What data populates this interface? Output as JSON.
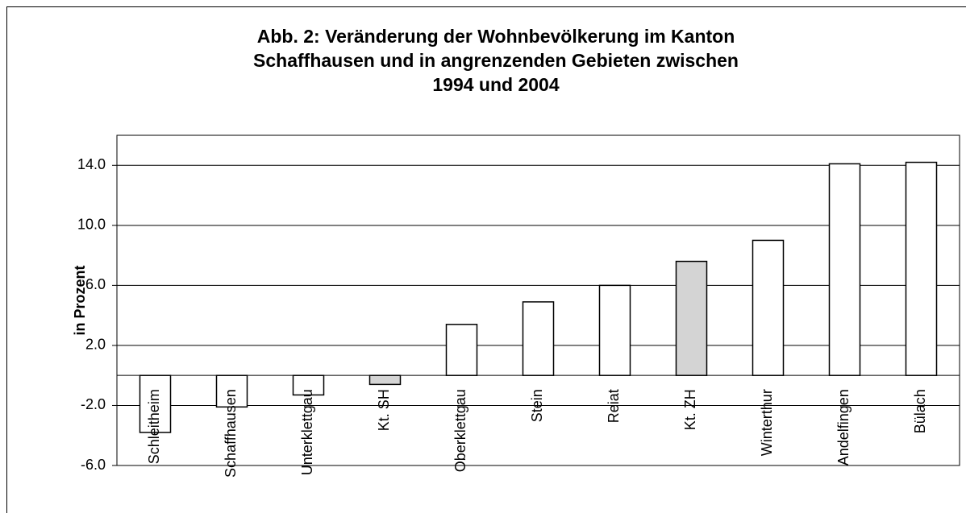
{
  "chart_data": {
    "type": "bar",
    "title": [
      "Abb. 2: Veränderung der Wohnbevölkerung im Kanton",
      "Schaffhausen und in angrenzenden Gebieten zwischen",
      "1994 und 2004"
    ],
    "y_label": "in Prozent",
    "categories": [
      "Schleitheim",
      "Schaffhausen",
      "Unterklettgau",
      "Kt. SH",
      "Oberklettgau",
      "Stein",
      "Reiat",
      "Kt. ZH",
      "Winterthur",
      "Andelfingen",
      "Bülach"
    ],
    "values": [
      -3.8,
      -2.1,
      -1.3,
      -0.6,
      3.4,
      4.9,
      6.0,
      7.6,
      9.0,
      14.1,
      14.2
    ],
    "colors": [
      "#ffffff",
      "#ffffff",
      "#ffffff",
      "#d4d4d4",
      "#ffffff",
      "#ffffff",
      "#ffffff",
      "#d4d4d4",
      "#ffffff",
      "#ffffff",
      "#ffffff"
    ],
    "ylim": [
      -6,
      16
    ],
    "yticks": [
      {
        "value": -6,
        "label": "-6.0"
      },
      {
        "value": -2,
        "label": "-2.0"
      },
      {
        "value": 2,
        "label": "2.0"
      },
      {
        "value": 6,
        "label": "6.0"
      },
      {
        "value": 10,
        "label": "10.0"
      },
      {
        "value": 14,
        "label": "14.0"
      }
    ],
    "grid": true
  }
}
